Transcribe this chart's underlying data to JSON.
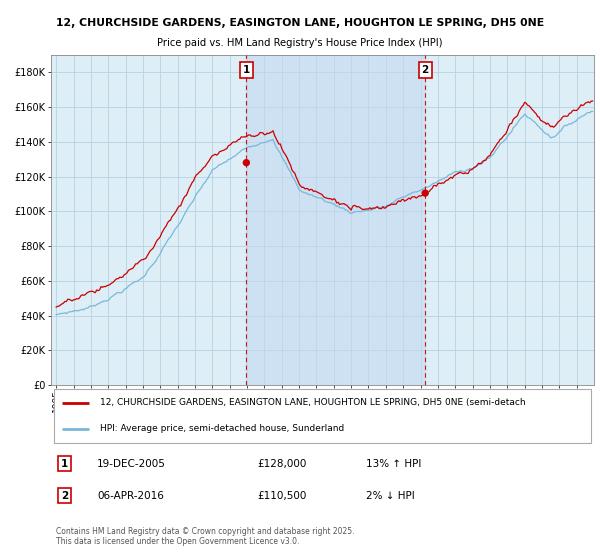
{
  "title_line1": "12, CHURCHSIDE GARDENS, EASINGTON LANE, HOUGHTON LE SPRING, DH5 0NE",
  "title_line2": "Price paid vs. HM Land Registry's House Price Index (HPI)",
  "legend_line1": "12, CHURCHSIDE GARDENS, EASINGTON LANE, HOUGHTON LE SPRING, DH5 0NE (semi-detach",
  "legend_line2": "HPI: Average price, semi-detached house, Sunderland",
  "annotation1_label": "1",
  "annotation1_date": "19-DEC-2005",
  "annotation1_price": "£128,000",
  "annotation1_hpi": "13% ↑ HPI",
  "annotation2_label": "2",
  "annotation2_date": "06-APR-2016",
  "annotation2_price": "£110,500",
  "annotation2_hpi": "2% ↓ HPI",
  "footnote": "Contains HM Land Registry data © Crown copyright and database right 2025.\nThis data is licensed under the Open Government Licence v3.0.",
  "hpi_color": "#7ab8d9",
  "price_color": "#cc0000",
  "dot_color": "#cc0000",
  "vline_color": "#cc0000",
  "background_color": "#ddeef7",
  "grid_color": "#b0cce0",
  "ylim": [
    0,
    190000
  ],
  "yticks": [
    0,
    20000,
    40000,
    60000,
    80000,
    100000,
    120000,
    140000,
    160000,
    180000
  ],
  "ytick_labels": [
    "£0",
    "£20K",
    "£40K",
    "£60K",
    "£80K",
    "£100K",
    "£120K",
    "£140K",
    "£160K",
    "£180K"
  ],
  "xtick_years": [
    1995,
    1996,
    1997,
    1998,
    1999,
    2000,
    2001,
    2002,
    2003,
    2004,
    2005,
    2006,
    2007,
    2008,
    2009,
    2010,
    2011,
    2012,
    2013,
    2014,
    2015,
    2016,
    2017,
    2018,
    2019,
    2020,
    2021,
    2022,
    2023,
    2024,
    2025
  ],
  "sale1_year": 2005.96,
  "sale1_price": 128000,
  "sale2_year": 2016.27,
  "sale2_price": 110500,
  "shade_start": 2005.96,
  "shade_end": 2016.27,
  "xlim_left": 1994.7,
  "xlim_right": 2026.0
}
